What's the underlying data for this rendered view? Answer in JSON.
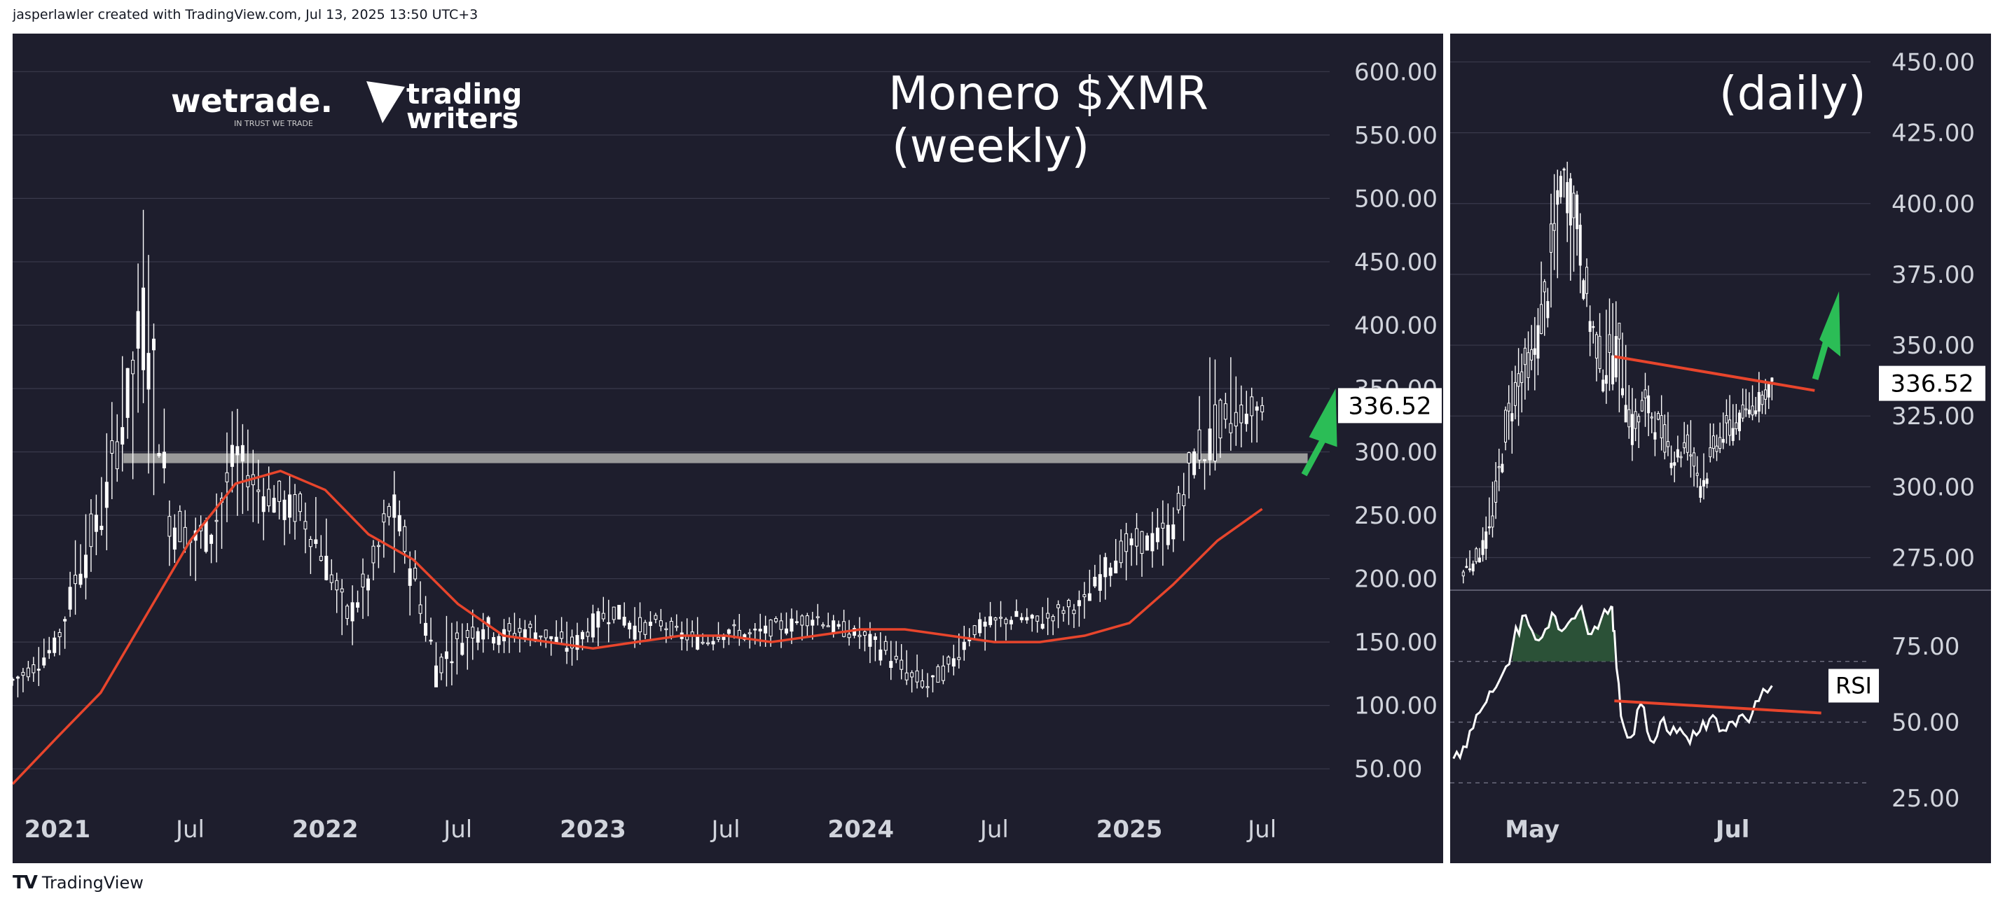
{
  "header": {
    "credit": "jasperlawler created with TradingView.com, Jul 13, 2025 13:50 UTC+3"
  },
  "footer": {
    "brand": "TradingView"
  },
  "logos": {
    "wetrade": "wetrade.",
    "wetrade_tagline": "IN TRUST WE TRADE",
    "trading_writers_line1": "trading",
    "trading_writers_line2": "writers"
  },
  "colors": {
    "background": "#1e1e2d",
    "grid": "#3a3a4c",
    "price": "#ffffff",
    "moving_average": "#e8452c",
    "support": "#9a9a9a",
    "trend": "#e8452c",
    "arrow_weekly": "#2bbd56",
    "arrow_daily": "#2bbd56",
    "rsi_fill": "#2e5e3a"
  },
  "chart_data": [
    {
      "type": "candlestick",
      "title": "Monero $XMR",
      "subtitle": "(weekly)",
      "x_tick_labels": [
        "2021",
        "Jul",
        "2022",
        "Jul",
        "2023",
        "Jul",
        "2024",
        "Jul",
        "2025",
        "Jul"
      ],
      "x_tick_bold": [
        true,
        false,
        true,
        false,
        true,
        false,
        true,
        false,
        true,
        false
      ],
      "x_tick_dates": [
        "2021-01",
        "2021-07",
        "2022-01",
        "2022-07",
        "2023-01",
        "2023-07",
        "2024-01",
        "2024-07",
        "2025-01",
        "2025-07"
      ],
      "xlim": [
        "2020-11",
        "2025-10"
      ],
      "y_ticks": [
        50,
        100,
        150,
        200,
        250,
        300,
        350,
        400,
        450,
        500,
        550,
        600
      ],
      "y_tick_labels": [
        "50.00",
        "100.00",
        "150.00",
        "200.00",
        "250.00",
        "300.00",
        "350.00",
        "400.00",
        "450.00",
        "500.00",
        "550.00",
        "600.00"
      ],
      "ylim": [
        28,
        630
      ],
      "last_price": 336.52,
      "last_price_label": "336.52",
      "support_level": 295,
      "support_range": [
        "2021-04",
        "2025-09"
      ],
      "price_path": {
        "dates": [
          "2020-11",
          "2020-12",
          "2021-01",
          "2021-02",
          "2021-03",
          "2021-04",
          "2021-05",
          "2021-06",
          "2021-07",
          "2021-08",
          "2021-09",
          "2021-10",
          "2021-11",
          "2021-12",
          "2022-01",
          "2022-02",
          "2022-03",
          "2022-04",
          "2022-05",
          "2022-06",
          "2022-07",
          "2022-08",
          "2022-09",
          "2022-10",
          "2022-11",
          "2022-12",
          "2023-01",
          "2023-02",
          "2023-03",
          "2023-04",
          "2023-05",
          "2023-06",
          "2023-07",
          "2023-08",
          "2023-09",
          "2023-10",
          "2023-11",
          "2023-12",
          "2024-01",
          "2024-02",
          "2024-03",
          "2024-04",
          "2024-05",
          "2024-06",
          "2024-07",
          "2024-08",
          "2024-09",
          "2024-10",
          "2024-11",
          "2024-12",
          "2025-01",
          "2025-02",
          "2025-03",
          "2025-04",
          "2025-05",
          "2025-06",
          "2025-07"
        ],
        "close": [
          120,
          130,
          150,
          210,
          250,
          330,
          420,
          250,
          230,
          240,
          300,
          270,
          260,
          250,
          215,
          170,
          200,
          260,
          200,
          130,
          150,
          165,
          155,
          160,
          155,
          145,
          165,
          175,
          160,
          165,
          155,
          150,
          160,
          155,
          160,
          165,
          170,
          160,
          155,
          145,
          125,
          115,
          130,
          160,
          165,
          170,
          165,
          175,
          180,
          210,
          225,
          230,
          240,
          300,
          310,
          330,
          336.52
        ],
        "high": [
          135,
          145,
          170,
          260,
          300,
          420,
          520,
          300,
          270,
          280,
          350,
          300,
          300,
          290,
          260,
          200,
          230,
          300,
          240,
          175,
          175,
          190,
          180,
          180,
          175,
          170,
          185,
          195,
          185,
          180,
          175,
          170,
          175,
          175,
          175,
          180,
          185,
          180,
          175,
          170,
          150,
          140,
          155,
          180,
          185,
          185,
          185,
          190,
          200,
          235,
          250,
          260,
          270,
          330,
          430,
          360,
          345
        ],
        "low": [
          100,
          110,
          130,
          160,
          200,
          280,
          250,
          180,
          190,
          200,
          240,
          230,
          220,
          200,
          180,
          140,
          160,
          200,
          160,
          100,
          120,
          130,
          130,
          140,
          135,
          125,
          135,
          150,
          140,
          150,
          140,
          135,
          140,
          140,
          140,
          145,
          150,
          145,
          140,
          120,
          105,
          105,
          110,
          135,
          145,
          150,
          150,
          155,
          160,
          180,
          195,
          200,
          210,
          230,
          290,
          295,
          300
        ]
      },
      "moving_average": {
        "dates": [
          "2020-11",
          "2021-01",
          "2021-03",
          "2021-05",
          "2021-07",
          "2021-09",
          "2021-11",
          "2022-01",
          "2022-03",
          "2022-05",
          "2022-07",
          "2022-09",
          "2022-11",
          "2023-01",
          "2023-03",
          "2023-05",
          "2023-07",
          "2023-09",
          "2023-11",
          "2024-01",
          "2024-03",
          "2024-05",
          "2024-07",
          "2024-09",
          "2024-11",
          "2025-01",
          "2025-03",
          "2025-05",
          "2025-07"
        ],
        "values": [
          38,
          75,
          110,
          170,
          230,
          275,
          285,
          270,
          235,
          215,
          180,
          155,
          150,
          145,
          150,
          155,
          155,
          150,
          155,
          160,
          160,
          155,
          150,
          150,
          155,
          165,
          195,
          230,
          255
        ]
      }
    },
    {
      "type": "candlestick",
      "title": "(daily)",
      "x_tick_labels": [
        "May",
        "Jul"
      ],
      "x_tick_dates": [
        "2025-05-01",
        "2025-07-01"
      ],
      "xlim": [
        "2025-04-06",
        "2025-08-12"
      ],
      "y_ticks": [
        275,
        300,
        325,
        350,
        375,
        400,
        425,
        450
      ],
      "y_tick_labels": [
        "275.00",
        "300.00",
        "325.00",
        "350.00",
        "375.00",
        "400.00",
        "425.00",
        "450.00"
      ],
      "ylim": [
        264,
        460
      ],
      "last_price": 336.52,
      "last_price_label": "336.52",
      "trend_line": {
        "dates": [
          "2025-05-26",
          "2025-07-26"
        ],
        "values": [
          346,
          334
        ]
      },
      "price_path": {
        "dates": [
          "2025-04-10",
          "2025-04-15",
          "2025-04-20",
          "2025-04-25",
          "2025-04-30",
          "2025-05-05",
          "2025-05-10",
          "2025-05-13",
          "2025-05-16",
          "2025-05-19",
          "2025-05-22",
          "2025-05-25",
          "2025-05-28",
          "2025-06-01",
          "2025-06-05",
          "2025-06-10",
          "2025-06-15",
          "2025-06-20",
          "2025-06-25",
          "2025-06-30",
          "2025-07-05",
          "2025-07-10",
          "2025-07-13"
        ],
        "close": [
          270,
          275,
          285,
          320,
          340,
          345,
          370,
          410,
          400,
          360,
          340,
          350,
          320,
          330,
          320,
          310,
          315,
          300,
          315,
          320,
          325,
          330,
          336.52
        ],
        "high": [
          275,
          285,
          300,
          340,
          355,
          360,
          410,
          418,
          415,
          380,
          365,
          375,
          340,
          345,
          335,
          325,
          330,
          320,
          330,
          340,
          335,
          345,
          340
        ],
        "low": [
          265,
          268,
          275,
          300,
          320,
          330,
          345,
          380,
          355,
          340,
          330,
          320,
          300,
          315,
          305,
          300,
          305,
          292,
          305,
          310,
          315,
          322,
          325
        ]
      }
    },
    {
      "type": "line",
      "title": "RSI",
      "x_tick_labels": [
        "May",
        "Jul"
      ],
      "y_ticks": [
        25,
        50,
        75
      ],
      "y_tick_labels": [
        "25.00",
        "50.00",
        "75.00"
      ],
      "dashed_levels": [
        30,
        70
      ],
      "ylim": [
        22,
        93
      ],
      "overbought": 70,
      "trend_line": {
        "dates": [
          "2025-05-26",
          "2025-07-28"
        ],
        "values": [
          57,
          53
        ]
      },
      "series": {
        "dates": [
          "2025-04-07",
          "2025-04-10",
          "2025-04-13",
          "2025-04-16",
          "2025-04-19",
          "2025-04-22",
          "2025-04-25",
          "2025-04-28",
          "2025-05-01",
          "2025-05-04",
          "2025-05-07",
          "2025-05-10",
          "2025-05-13",
          "2025-05-16",
          "2025-05-19",
          "2025-05-22",
          "2025-05-25",
          "2025-05-26",
          "2025-05-28",
          "2025-05-31",
          "2025-06-03",
          "2025-06-06",
          "2025-06-09",
          "2025-06-12",
          "2025-06-15",
          "2025-06-18",
          "2025-06-21",
          "2025-06-24",
          "2025-06-27",
          "2025-06-30",
          "2025-07-03",
          "2025-07-06",
          "2025-07-09",
          "2025-07-13"
        ],
        "values": [
          38,
          42,
          48,
          55,
          60,
          66,
          75,
          85,
          80,
          78,
          86,
          80,
          84,
          88,
          79,
          84,
          88,
          80,
          52,
          45,
          56,
          44,
          50,
          46,
          48,
          43,
          47,
          51,
          47,
          50,
          52,
          50,
          57,
          62
        ]
      }
    }
  ]
}
